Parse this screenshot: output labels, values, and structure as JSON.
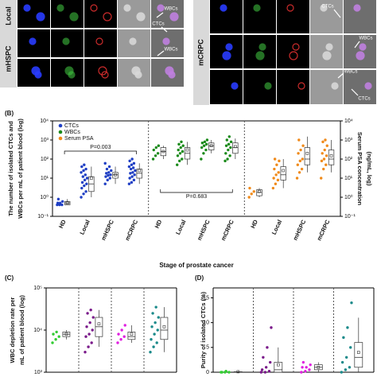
{
  "micrograph": {
    "left_rows": [
      "Local",
      "mHSPC"
    ],
    "right_rows": [
      "mCRPC"
    ],
    "annotations": [
      "WBCs",
      "CTCs",
      "WBCs",
      "CTCs",
      "WBCs",
      "WBCs",
      "CTCs"
    ]
  },
  "chart_data": [
    {
      "type": "box",
      "panel_label": "(B)",
      "ylabel": [
        "The number of isolated CTCs and",
        "WBCs per mL of patient blood (log)"
      ],
      "y2label": [
        "Serum PSA concentration",
        "(ng/mL, log)"
      ],
      "xlabel": "Stage of prostate cancer",
      "categories": [
        "HD",
        "Local",
        "mHSPC",
        "mCRPC"
      ],
      "log_scale": true,
      "legend": "upper left",
      "ylim": [
        0.1,
        10000
      ],
      "yticks": [
        {
          "value": 0.1,
          "label": "10⁻¹"
        },
        {
          "value": 1,
          "label": "10⁰"
        },
        {
          "value": 10,
          "label": "10¹"
        },
        {
          "value": 100,
          "label": "10²"
        },
        {
          "value": 1000,
          "label": "10³"
        },
        {
          "value": 10000,
          "label": "10⁴"
        }
      ],
      "y2lim": [
        0.1,
        10000
      ],
      "y2ticks": [
        {
          "value": 0.1,
          "label": "10⁻¹"
        },
        {
          "value": 1,
          "label": "10⁰"
        },
        {
          "value": 10,
          "label": "10¹"
        },
        {
          "value": 100,
          "label": "10²"
        },
        {
          "value": 1000,
          "label": "10³"
        },
        {
          "value": 10000,
          "label": "10⁴"
        }
      ],
      "annotations": [
        "P=0.003",
        "P=0.683"
      ],
      "series": [
        {
          "name": "CTCs",
          "color": "#1f3fc4",
          "groups": [
            {
              "points": [
                0.4,
                0.4,
                0.4,
                0.5,
                0.5,
                0.6,
                0.8
              ],
              "box": [
                0.4,
                0.4,
                0.5,
                0.6,
                0.8
              ],
              "mean": 0.5
            },
            {
              "points": [
                1,
                1.5,
                2,
                3,
                4,
                5,
                6,
                8,
                10,
                12,
                15,
                20,
                25,
                30,
                40,
                50
              ],
              "box": [
                1,
                2,
                5,
                12,
                40
              ],
              "mean": 10
            },
            {
              "points": [
                5,
                8,
                10,
                12,
                14,
                15,
                18,
                20,
                25,
                30,
                40,
                60
              ],
              "box": [
                5,
                10,
                15,
                20,
                40
              ],
              "mean": 15
            },
            {
              "points": [
                5,
                6,
                8,
                10,
                12,
                15,
                18,
                20,
                25,
                30,
                35,
                40,
                50,
                60,
                80,
                100
              ],
              "box": [
                5,
                10,
                18,
                30,
                60
              ],
              "mean": 25
            }
          ]
        },
        {
          "name": "WBCs",
          "color": "#1a8a1a",
          "groups": [
            {
              "points": [
                100,
                150,
                200,
                300,
                400,
                500
              ],
              "box": [
                100,
                150,
                250,
                400,
                500
              ],
              "mean": 250
            },
            {
              "points": [
                50,
                80,
                100,
                150,
                200,
                250,
                300,
                400,
                500,
                600,
                800
              ],
              "box": [
                50,
                100,
                200,
                400,
                800
              ],
              "mean": 300
            },
            {
              "points": [
                100,
                200,
                300,
                400,
                500,
                600,
                700,
                800,
                1000
              ],
              "box": [
                200,
                300,
                500,
                700,
                1000
              ],
              "mean": 500
            },
            {
              "points": [
                80,
                100,
                150,
                200,
                300,
                400,
                500,
                600,
                800,
                1000,
                1500
              ],
              "box": [
                100,
                200,
                400,
                700,
                1200
              ],
              "mean": 450
            }
          ]
        },
        {
          "name": "Serum PSA",
          "color": "#f08a1a",
          "axis": "y2",
          "groups": [
            {
              "points": [
                1,
                1.5,
                2,
                3
              ],
              "box": [
                1,
                1.2,
                1.8,
                2.5,
                3
              ],
              "mean": 2
            },
            {
              "points": [
                3,
                5,
                8,
                10,
                15,
                20,
                30,
                50,
                80,
                100
              ],
              "box": [
                3,
                8,
                15,
                40,
                100
              ],
              "mean": 25
            },
            {
              "points": [
                10,
                20,
                30,
                50,
                80,
                100,
                200,
                300,
                500,
                1000
              ],
              "box": [
                20,
                50,
                100,
                400,
                1500
              ],
              "mean": 200
            },
            {
              "points": [
                10,
                30,
                50,
                80,
                100,
                150,
                200,
                300,
                500,
                800,
                1000
              ],
              "box": [
                20,
                50,
                100,
                300,
                1000
              ],
              "mean": 150
            }
          ]
        }
      ]
    },
    {
      "type": "box",
      "panel_label": "(C)",
      "ylabel": [
        "WBC depletion rate per",
        "mL of patient blood (log)"
      ],
      "log_scale": true,
      "ylim": [
        1000,
        100000
      ],
      "yticks": [
        {
          "value": 1000,
          "label": "10³"
        },
        {
          "value": 10000,
          "label": "10⁴"
        },
        {
          "value": 100000,
          "label": "10⁵"
        }
      ],
      "series": [
        {
          "color": "#33cc33",
          "groups": [
            {
              "points": [
                5000,
                6000,
                7000,
                8000,
                9000
              ],
              "box": [
                6000,
                7000,
                8000,
                9000,
                10000
              ],
              "mean": 8000
            }
          ]
        },
        {
          "color": "#7a1a8a",
          "groups": [
            {
              "points": [
                3000,
                4000,
                5000,
                7000,
                8000,
                10000,
                12000,
                15000,
                20000,
                25000,
                30000
              ],
              "box": [
                4000,
                7000,
                12000,
                20000,
                30000
              ],
              "mean": 14000
            }
          ]
        },
        {
          "color": "#e020e0",
          "groups": [
            {
              "points": [
                5000,
                6000,
                7000,
                8000,
                10000,
                13000
              ],
              "box": [
                5000,
                6000,
                7000,
                9000,
                13000
              ],
              "mean": 8000
            }
          ]
        },
        {
          "color": "#1a8a8a",
          "groups": [
            {
              "points": [
                3000,
                4000,
                5000,
                6000,
                8000,
                10000,
                12000,
                15000,
                20000,
                25000,
                35000
              ],
              "box": [
                3000,
                6000,
                10000,
                20000,
                35000
              ],
              "mean": 12000
            }
          ]
        }
      ]
    },
    {
      "type": "box",
      "panel_label": "(D)",
      "ylabel": [
        "Purity of isolated CTCs (%)"
      ],
      "log_scale": false,
      "ylim": [
        0,
        17
      ],
      "yticks": [
        0,
        5,
        10,
        15
      ],
      "series": [
        {
          "color": "#33cc33",
          "groups": [
            {
              "points": [
                0,
                0,
                0,
                0,
                0.2
              ],
              "box": [
                0,
                0,
                0,
                0.1,
                0.2
              ],
              "mean": 0.1
            }
          ]
        },
        {
          "color": "#7a1a8a",
          "groups": [
            {
              "points": [
                0,
                0,
                0.2,
                0.5,
                1,
                2,
                3,
                5,
                9
              ],
              "box": [
                0,
                0,
                0.5,
                2,
                5
              ],
              "mean": 1.5
            }
          ]
        },
        {
          "color": "#e020e0",
          "groups": [
            {
              "points": [
                0,
                0.2,
                0.5,
                1,
                1,
                1.5,
                2
              ],
              "box": [
                0,
                0.5,
                1,
                1.5,
                2
              ],
              "mean": 1
            }
          ]
        },
        {
          "color": "#1a8a8a",
          "groups": [
            {
              "points": [
                0,
                0.5,
                1,
                2,
                3,
                5,
                7,
                9,
                14
              ],
              "box": [
                0,
                1,
                3,
                6,
                11
              ],
              "mean": 4
            }
          ]
        }
      ]
    }
  ]
}
